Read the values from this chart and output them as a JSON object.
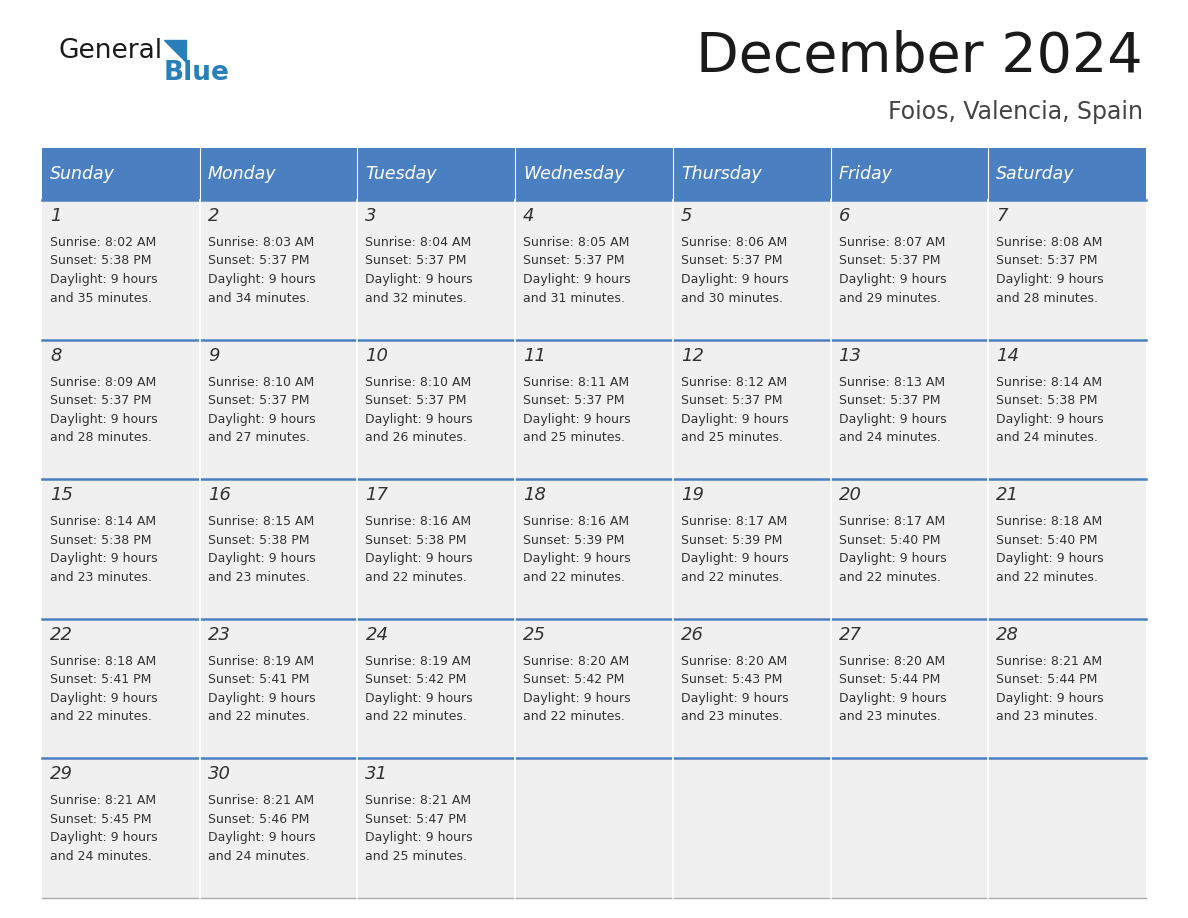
{
  "title": "December 2024",
  "subtitle": "Foios, Valencia, Spain",
  "header_color": "#4a7fc1",
  "header_text_color": "#FFFFFF",
  "bg_color": "#FFFFFF",
  "cell_bg_color": "#F0F0F0",
  "day_headers": [
    "Sunday",
    "Monday",
    "Tuesday",
    "Wednesday",
    "Thursday",
    "Friday",
    "Saturday"
  ],
  "weeks": [
    [
      {
        "day": "1",
        "sunrise": "8:02 AM",
        "sunset": "5:38 PM",
        "daylight_line1": "9 hours",
        "daylight_line2": "and 35 minutes."
      },
      {
        "day": "2",
        "sunrise": "8:03 AM",
        "sunset": "5:37 PM",
        "daylight_line1": "9 hours",
        "daylight_line2": "and 34 minutes."
      },
      {
        "day": "3",
        "sunrise": "8:04 AM",
        "sunset": "5:37 PM",
        "daylight_line1": "9 hours",
        "daylight_line2": "and 32 minutes."
      },
      {
        "day": "4",
        "sunrise": "8:05 AM",
        "sunset": "5:37 PM",
        "daylight_line1": "9 hours",
        "daylight_line2": "and 31 minutes."
      },
      {
        "day": "5",
        "sunrise": "8:06 AM",
        "sunset": "5:37 PM",
        "daylight_line1": "9 hours",
        "daylight_line2": "and 30 minutes."
      },
      {
        "day": "6",
        "sunrise": "8:07 AM",
        "sunset": "5:37 PM",
        "daylight_line1": "9 hours",
        "daylight_line2": "and 29 minutes."
      },
      {
        "day": "7",
        "sunrise": "8:08 AM",
        "sunset": "5:37 PM",
        "daylight_line1": "9 hours",
        "daylight_line2": "and 28 minutes."
      }
    ],
    [
      {
        "day": "8",
        "sunrise": "8:09 AM",
        "sunset": "5:37 PM",
        "daylight_line1": "9 hours",
        "daylight_line2": "and 28 minutes."
      },
      {
        "day": "9",
        "sunrise": "8:10 AM",
        "sunset": "5:37 PM",
        "daylight_line1": "9 hours",
        "daylight_line2": "and 27 minutes."
      },
      {
        "day": "10",
        "sunrise": "8:10 AM",
        "sunset": "5:37 PM",
        "daylight_line1": "9 hours",
        "daylight_line2": "and 26 minutes."
      },
      {
        "day": "11",
        "sunrise": "8:11 AM",
        "sunset": "5:37 PM",
        "daylight_line1": "9 hours",
        "daylight_line2": "and 25 minutes."
      },
      {
        "day": "12",
        "sunrise": "8:12 AM",
        "sunset": "5:37 PM",
        "daylight_line1": "9 hours",
        "daylight_line2": "and 25 minutes."
      },
      {
        "day": "13",
        "sunrise": "8:13 AM",
        "sunset": "5:37 PM",
        "daylight_line1": "9 hours",
        "daylight_line2": "and 24 minutes."
      },
      {
        "day": "14",
        "sunrise": "8:14 AM",
        "sunset": "5:38 PM",
        "daylight_line1": "9 hours",
        "daylight_line2": "and 24 minutes."
      }
    ],
    [
      {
        "day": "15",
        "sunrise": "8:14 AM",
        "sunset": "5:38 PM",
        "daylight_line1": "9 hours",
        "daylight_line2": "and 23 minutes."
      },
      {
        "day": "16",
        "sunrise": "8:15 AM",
        "sunset": "5:38 PM",
        "daylight_line1": "9 hours",
        "daylight_line2": "and 23 minutes."
      },
      {
        "day": "17",
        "sunrise": "8:16 AM",
        "sunset": "5:38 PM",
        "daylight_line1": "9 hours",
        "daylight_line2": "and 22 minutes."
      },
      {
        "day": "18",
        "sunrise": "8:16 AM",
        "sunset": "5:39 PM",
        "daylight_line1": "9 hours",
        "daylight_line2": "and 22 minutes."
      },
      {
        "day": "19",
        "sunrise": "8:17 AM",
        "sunset": "5:39 PM",
        "daylight_line1": "9 hours",
        "daylight_line2": "and 22 minutes."
      },
      {
        "day": "20",
        "sunrise": "8:17 AM",
        "sunset": "5:40 PM",
        "daylight_line1": "9 hours",
        "daylight_line2": "and 22 minutes."
      },
      {
        "day": "21",
        "sunrise": "8:18 AM",
        "sunset": "5:40 PM",
        "daylight_line1": "9 hours",
        "daylight_line2": "and 22 minutes."
      }
    ],
    [
      {
        "day": "22",
        "sunrise": "8:18 AM",
        "sunset": "5:41 PM",
        "daylight_line1": "9 hours",
        "daylight_line2": "and 22 minutes."
      },
      {
        "day": "23",
        "sunrise": "8:19 AM",
        "sunset": "5:41 PM",
        "daylight_line1": "9 hours",
        "daylight_line2": "and 22 minutes."
      },
      {
        "day": "24",
        "sunrise": "8:19 AM",
        "sunset": "5:42 PM",
        "daylight_line1": "9 hours",
        "daylight_line2": "and 22 minutes."
      },
      {
        "day": "25",
        "sunrise": "8:20 AM",
        "sunset": "5:42 PM",
        "daylight_line1": "9 hours",
        "daylight_line2": "and 22 minutes."
      },
      {
        "day": "26",
        "sunrise": "8:20 AM",
        "sunset": "5:43 PM",
        "daylight_line1": "9 hours",
        "daylight_line2": "and 23 minutes."
      },
      {
        "day": "27",
        "sunrise": "8:20 AM",
        "sunset": "5:44 PM",
        "daylight_line1": "9 hours",
        "daylight_line2": "and 23 minutes."
      },
      {
        "day": "28",
        "sunrise": "8:21 AM",
        "sunset": "5:44 PM",
        "daylight_line1": "9 hours",
        "daylight_line2": "and 23 minutes."
      }
    ],
    [
      {
        "day": "29",
        "sunrise": "8:21 AM",
        "sunset": "5:45 PM",
        "daylight_line1": "9 hours",
        "daylight_line2": "and 24 minutes."
      },
      {
        "day": "30",
        "sunrise": "8:21 AM",
        "sunset": "5:46 PM",
        "daylight_line1": "9 hours",
        "daylight_line2": "and 24 minutes."
      },
      {
        "day": "31",
        "sunrise": "8:21 AM",
        "sunset": "5:47 PM",
        "daylight_line1": "9 hours",
        "daylight_line2": "and 25 minutes."
      },
      null,
      null,
      null,
      null
    ]
  ],
  "logo_color_general": "#1a1a1a",
  "logo_color_blue": "#2980B9",
  "logo_triangle_color": "#2980B9"
}
